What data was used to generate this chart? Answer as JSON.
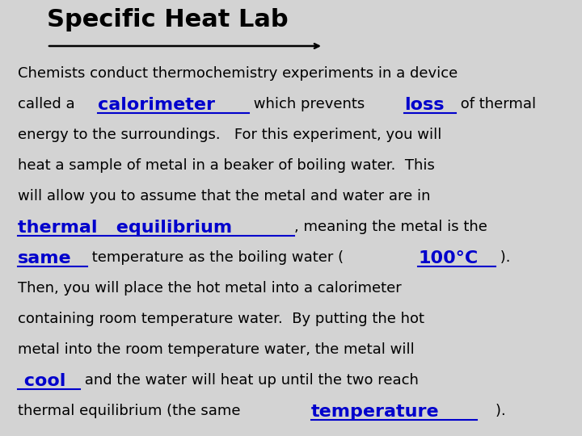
{
  "title": "Specific Heat Lab",
  "bg_color": "#d3d3d3",
  "title_color": "#000000",
  "title_fontsize": 22,
  "body_fontsize": 13,
  "highlight_fontsize": 16,
  "highlight_color": "#0000cc",
  "normal_color": "#000000",
  "lines": [
    [
      {
        "text": "Chemists conduct thermochemistry experiments in a device",
        "color": "#000000",
        "bold": false,
        "underline": false,
        "highlight": false
      }
    ],
    [
      {
        "text": "called a ",
        "color": "#000000",
        "bold": false,
        "underline": false,
        "highlight": false
      },
      {
        "text": "calorimeter",
        "color": "#0000cc",
        "bold": true,
        "underline": true,
        "highlight": true
      },
      {
        "text": " which prevents ",
        "color": "#000000",
        "bold": false,
        "underline": false,
        "highlight": false
      },
      {
        "text": "loss",
        "color": "#0000cc",
        "bold": true,
        "underline": true,
        "highlight": true
      },
      {
        "text": " of thermal",
        "color": "#000000",
        "bold": false,
        "underline": false,
        "highlight": false
      }
    ],
    [
      {
        "text": "energy to the surroundings.   For this experiment, you will",
        "color": "#000000",
        "bold": false,
        "underline": false,
        "highlight": false
      }
    ],
    [
      {
        "text": "heat a sample of metal in a beaker of boiling water.  This",
        "color": "#000000",
        "bold": false,
        "underline": false,
        "highlight": false
      }
    ],
    [
      {
        "text": "will allow you to assume that the metal and water are in",
        "color": "#000000",
        "bold": false,
        "underline": false,
        "highlight": false
      }
    ],
    [
      {
        "text": "thermal   equilibrium",
        "color": "#0000cc",
        "bold": true,
        "underline": true,
        "highlight": true
      },
      {
        "text": ", meaning the metal is the",
        "color": "#000000",
        "bold": false,
        "underline": false,
        "highlight": false
      }
    ],
    [
      {
        "text": "same",
        "color": "#0000cc",
        "bold": true,
        "underline": true,
        "highlight": true
      },
      {
        "text": " temperature as the boiling water (",
        "color": "#000000",
        "bold": false,
        "underline": false,
        "highlight": false
      },
      {
        "text": "100°C",
        "color": "#0000cc",
        "bold": true,
        "underline": true,
        "highlight": true
      },
      {
        "text": " ).",
        "color": "#000000",
        "bold": false,
        "underline": false,
        "highlight": false
      }
    ],
    [
      {
        "text": "Then, you will place the hot metal into a calorimeter",
        "color": "#000000",
        "bold": false,
        "underline": false,
        "highlight": false
      }
    ],
    [
      {
        "text": "containing room temperature water.  By putting the hot",
        "color": "#000000",
        "bold": false,
        "underline": false,
        "highlight": false
      }
    ],
    [
      {
        "text": "metal into the room temperature water, the metal will",
        "color": "#000000",
        "bold": false,
        "underline": false,
        "highlight": false
      }
    ],
    [
      {
        "text": " cool",
        "color": "#0000cc",
        "bold": true,
        "underline": true,
        "highlight": true
      },
      {
        "text": " and the water will heat up until the two reach",
        "color": "#000000",
        "bold": false,
        "underline": false,
        "highlight": false
      }
    ],
    [
      {
        "text": "thermal equilibrium (the same ",
        "color": "#000000",
        "bold": false,
        "underline": false,
        "highlight": false
      },
      {
        "text": "temperature",
        "color": "#0000cc",
        "bold": true,
        "underline": true,
        "highlight": true
      },
      {
        "text": "    ).",
        "color": "#000000",
        "bold": false,
        "underline": false,
        "highlight": false
      }
    ]
  ]
}
